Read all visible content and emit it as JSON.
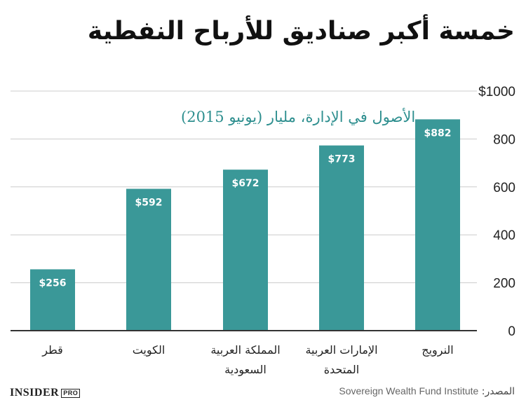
{
  "header": {
    "title": "خمسة أكبر صناديق للأرباح النفطية",
    "subtitle": "الأصول في الإدارة، مليار (يونيو 2015)"
  },
  "footer": {
    "source_label": "المصدر:",
    "source_value": "Sovereign Wealth Fund Institute",
    "logo_text": "INSIDER",
    "logo_badge": "PRO"
  },
  "colors": {
    "bar": "#3a9898",
    "axis": "#333333",
    "grid": "#cccccc",
    "bar_label": "#ffffff"
  },
  "chart_data": {
    "type": "bar",
    "categories": [
      [
        "قطر"
      ],
      [
        "الكويت"
      ],
      [
        "المملكة العربية",
        "السعودية"
      ],
      [
        "الإمارات العربية",
        "المتحدة"
      ],
      [
        "النرويج"
      ]
    ],
    "values": [
      256,
      592,
      672,
      773,
      882
    ],
    "value_labels": [
      "$256",
      "$592",
      "$672",
      "$773",
      "$882"
    ],
    "yticks": [
      0,
      200,
      400,
      600,
      800,
      1000
    ],
    "ytick_labels": [
      "0",
      "200",
      "400",
      "600",
      "800",
      "$1000"
    ],
    "ylim": [
      0,
      1000
    ],
    "axis_side": "right",
    "grid": true
  }
}
